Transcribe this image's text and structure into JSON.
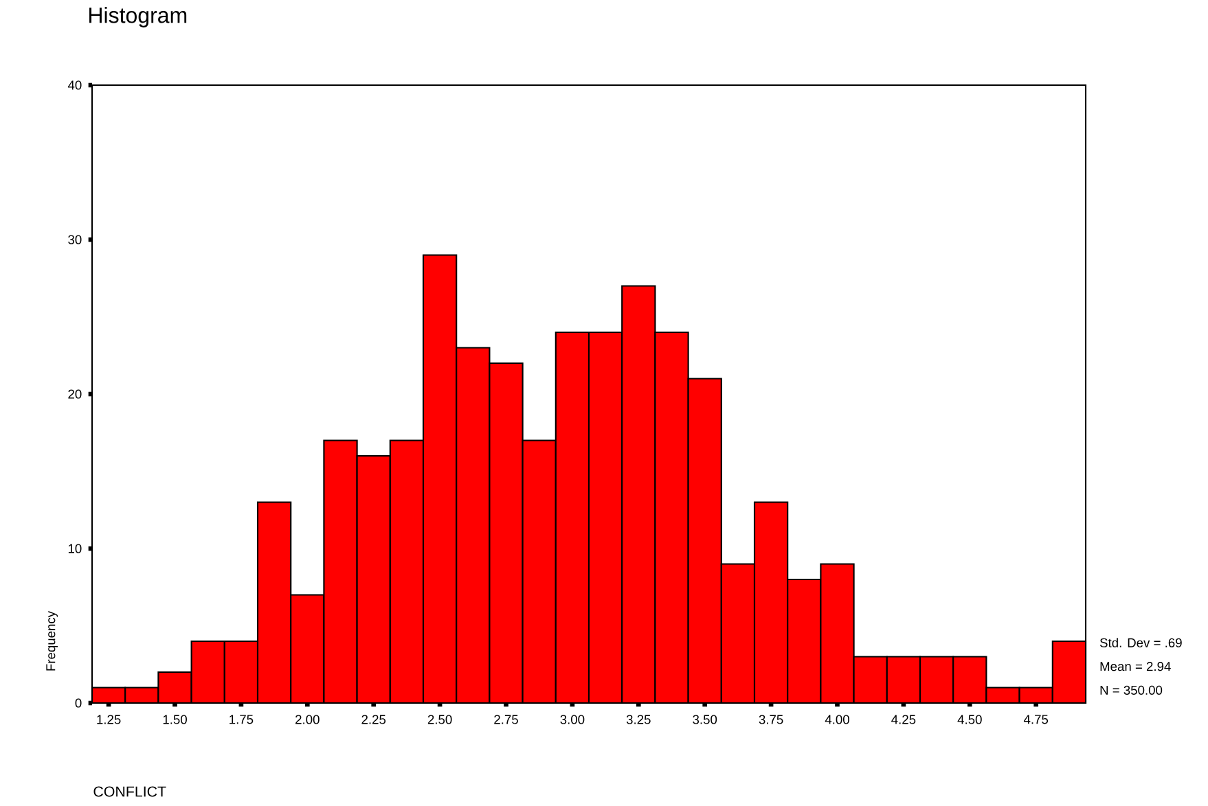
{
  "chart_data": {
    "type": "histogram",
    "title": "Histogram",
    "xlabel": "CONFLICT",
    "ylabel": "Frequency",
    "bins": [
      1.1875,
      1.3125,
      1.4375,
      1.5625,
      1.6875,
      1.8125,
      1.9375,
      2.0625,
      2.1875,
      2.3125,
      2.4375,
      2.5625,
      2.6875,
      2.8125,
      2.9375,
      3.0625,
      3.1875,
      3.3125,
      3.4375,
      3.5625,
      3.6875,
      3.8125,
      3.9375,
      4.0625,
      4.1875,
      4.3125,
      4.4375,
      4.5625,
      4.6875,
      4.8125,
      4.9375
    ],
    "values": [
      1,
      1,
      2,
      4,
      4,
      13,
      7,
      17,
      16,
      17,
      29,
      23,
      22,
      17,
      24,
      24,
      27,
      24,
      21,
      9,
      13,
      8,
      9,
      3,
      3,
      3,
      3,
      1,
      1,
      4
    ],
    "color": "#ff0000",
    "xlim": [
      1.1875,
      4.9375
    ],
    "ylim": [
      0,
      40
    ],
    "xticks": [
      1.25,
      {
        "value": 1.5,
        "label": "1.50"
      },
      1.75,
      {
        "value": 2.0,
        "label": "2.00"
      },
      2.25,
      {
        "value": 2.5,
        "label": "2.50"
      },
      2.75,
      {
        "value": 3.0,
        "label": "3.00"
      },
      3.25,
      {
        "value": 3.5,
        "label": "3.50"
      },
      3.75,
      {
        "value": 4.0,
        "label": "4.00"
      },
      4.25,
      {
        "value": 4.5,
        "label": "4.50"
      },
      4.75
    ],
    "yticks": [
      0,
      10,
      20,
      30,
      40
    ],
    "annotations": [
      "Std. Dev = .69",
      "Mean = 2.94",
      "N = 350.00"
    ]
  }
}
